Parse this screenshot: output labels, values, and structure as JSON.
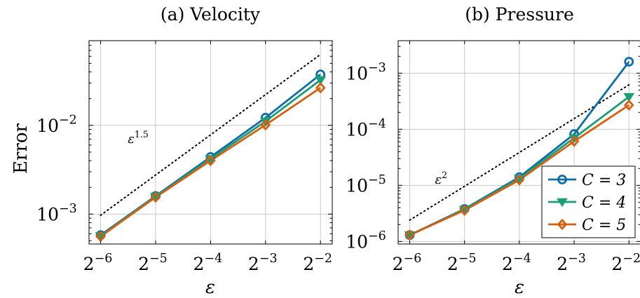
{
  "figure": {
    "ylabel": "Error"
  },
  "chart_data": [
    {
      "type": "line",
      "title": "(a) Velocity",
      "xlabel": "ε",
      "ylabel": "Error",
      "x_scale": "log2",
      "y_scale": "log10",
      "x": [
        0.015625,
        0.03125,
        0.0625,
        0.125,
        0.25
      ],
      "x_tick_labels": [
        {
          "base": "2",
          "exp": "−6"
        },
        {
          "base": "2",
          "exp": "−5"
        },
        {
          "base": "2",
          "exp": "−4"
        },
        {
          "base": "2",
          "exp": "−3"
        },
        {
          "base": "2",
          "exp": "−2"
        }
      ],
      "y_tick_labels": [
        {
          "base": "10",
          "exp": "−3",
          "value": 0.001
        },
        {
          "base": "10",
          "exp": "−2",
          "value": 0.01
        }
      ],
      "xlim": [
        0.0135,
        0.29
      ],
      "ylim": [
        0.00046,
        0.09
      ],
      "grid": true,
      "series": [
        {
          "name": "C = 3",
          "color": "#0c6ea8",
          "marker": "circle",
          "values": [
            0.00058,
            0.0016,
            0.0044,
            0.0122,
            0.0375
          ]
        },
        {
          "name": "C = 4",
          "color": "#1a9e77",
          "marker": "triangle-down",
          "values": [
            0.00057,
            0.00158,
            0.0042,
            0.0111,
            0.0325
          ]
        },
        {
          "name": "C = 5",
          "color": "#d95f0e",
          "marker": "diamond",
          "values": [
            0.00056,
            0.00155,
            0.004,
            0.0101,
            0.0265
          ]
        }
      ],
      "reference_line": {
        "style": "dotted",
        "x": [
          0.015625,
          0.25
        ],
        "y": [
          0.00097,
          0.063
        ],
        "label": {
          "base": "ε",
          "exp": "1.5"
        },
        "label_anchor": {
          "x": 0.022,
          "y": 0.0063
        }
      }
    },
    {
      "type": "line",
      "title": "(b) Pressure",
      "xlabel": "ε",
      "x_scale": "log2",
      "y_scale": "log10",
      "x": [
        0.015625,
        0.03125,
        0.0625,
        0.125,
        0.25
      ],
      "x_tick_labels": [
        {
          "base": "2",
          "exp": "−6"
        },
        {
          "base": "2",
          "exp": "−5"
        },
        {
          "base": "2",
          "exp": "−4"
        },
        {
          "base": "2",
          "exp": "−3"
        },
        {
          "base": "2",
          "exp": "−2"
        }
      ],
      "y_tick_labels": [
        {
          "base": "10",
          "exp": "−6",
          "value": 1e-06
        },
        {
          "base": "10",
          "exp": "−5",
          "value": 1e-05
        },
        {
          "base": "10",
          "exp": "−4",
          "value": 0.0001
        },
        {
          "base": "10",
          "exp": "−3",
          "value": 0.001
        }
      ],
      "xlim": [
        0.0135,
        0.29
      ],
      "ylim": [
        9e-07,
        0.0038
      ],
      "grid": true,
      "legend_position": "lower-right",
      "series": [
        {
          "name": "C = 3",
          "color": "#0c6ea8",
          "marker": "circle",
          "values": [
            1.3e-06,
            3.8e-06,
            1.4e-05,
            8.2e-05,
            0.0016
          ]
        },
        {
          "name": "C = 4",
          "color": "#1a9e77",
          "marker": "triangle-down",
          "values": [
            1.3e-06,
            3.7e-06,
            1.33e-05,
            7e-05,
            0.00038
          ]
        },
        {
          "name": "C = 5",
          "color": "#d95f0e",
          "marker": "diamond",
          "values": [
            1.3e-06,
            3.6e-06,
            1.25e-05,
            6.1e-05,
            0.00027
          ]
        }
      ],
      "reference_line": {
        "style": "dotted",
        "x": [
          0.015625,
          0.25
        ],
        "y": [
          2.4e-06,
          0.00062
        ],
        "label": {
          "base": "ε",
          "exp": "2"
        },
        "label_anchor": {
          "x": 0.0215,
          "y": 1.07e-05
        }
      }
    }
  ]
}
